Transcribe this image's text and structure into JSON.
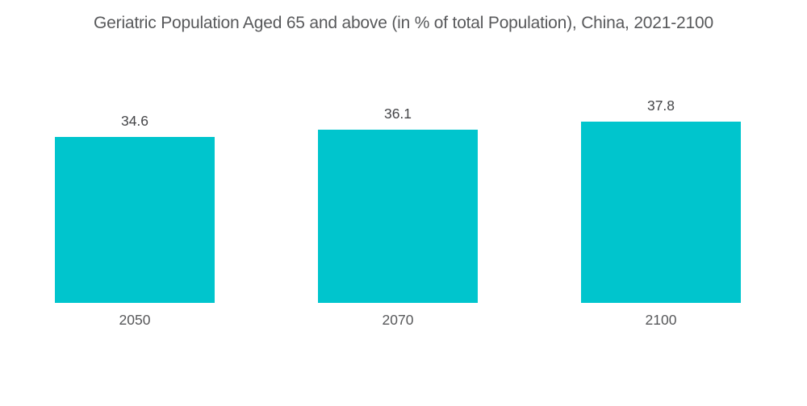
{
  "title": "Geriatric Population Aged 65 and above (in % of total Population), China, 2021-2100",
  "colors": {
    "bar": "#00c5cd",
    "title_text": "#58595b",
    "value_text": "#444548",
    "label_text": "#565759",
    "background": "#ffffff"
  },
  "chart_data": {
    "type": "bar",
    "title": "Geriatric Population Aged 65 and above (in % of total Population), China, 2021-2100",
    "categories": [
      "2050",
      "2070",
      "2100"
    ],
    "values": [
      34.6,
      36.1,
      37.8
    ],
    "value_labels": [
      "34.6",
      "36.1",
      "37.8"
    ],
    "xlabel": "",
    "ylabel": "",
    "ylim": [
      0,
      40
    ],
    "grid": false,
    "legend": "none",
    "axes_visible": false
  }
}
